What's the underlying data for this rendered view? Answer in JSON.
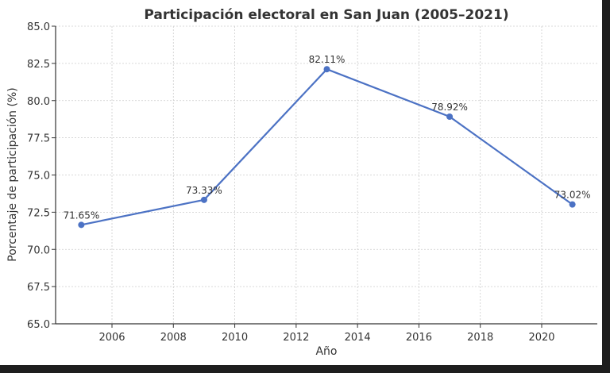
{
  "chart_data": {
    "type": "line",
    "title": "Participación electoral en San Juan (2005–2021)",
    "xlabel": "Año",
    "ylabel": "Porcentaje de participación (%)",
    "x": [
      2005,
      2009,
      2013,
      2017,
      2021
    ],
    "series": [
      {
        "values": [
          71.65,
          73.33,
          82.11,
          78.92,
          73.02
        ],
        "color": "#4c72c4"
      }
    ],
    "data_labels": [
      "71.65%",
      "73.33%",
      "82.11%",
      "78.92%",
      "73.02%"
    ],
    "xlim": [
      2004.0,
      2021.8
    ],
    "ylim": [
      65.0,
      85.0
    ],
    "xticks": [
      2006,
      2008,
      2010,
      2012,
      2014,
      2016,
      2018,
      2020
    ],
    "yticks": [
      "65.0",
      "67.5",
      "70.0",
      "72.5",
      "75.0",
      "77.5",
      "80.0",
      "82.5",
      "85.0"
    ],
    "grid": true,
    "marker": "circle"
  }
}
